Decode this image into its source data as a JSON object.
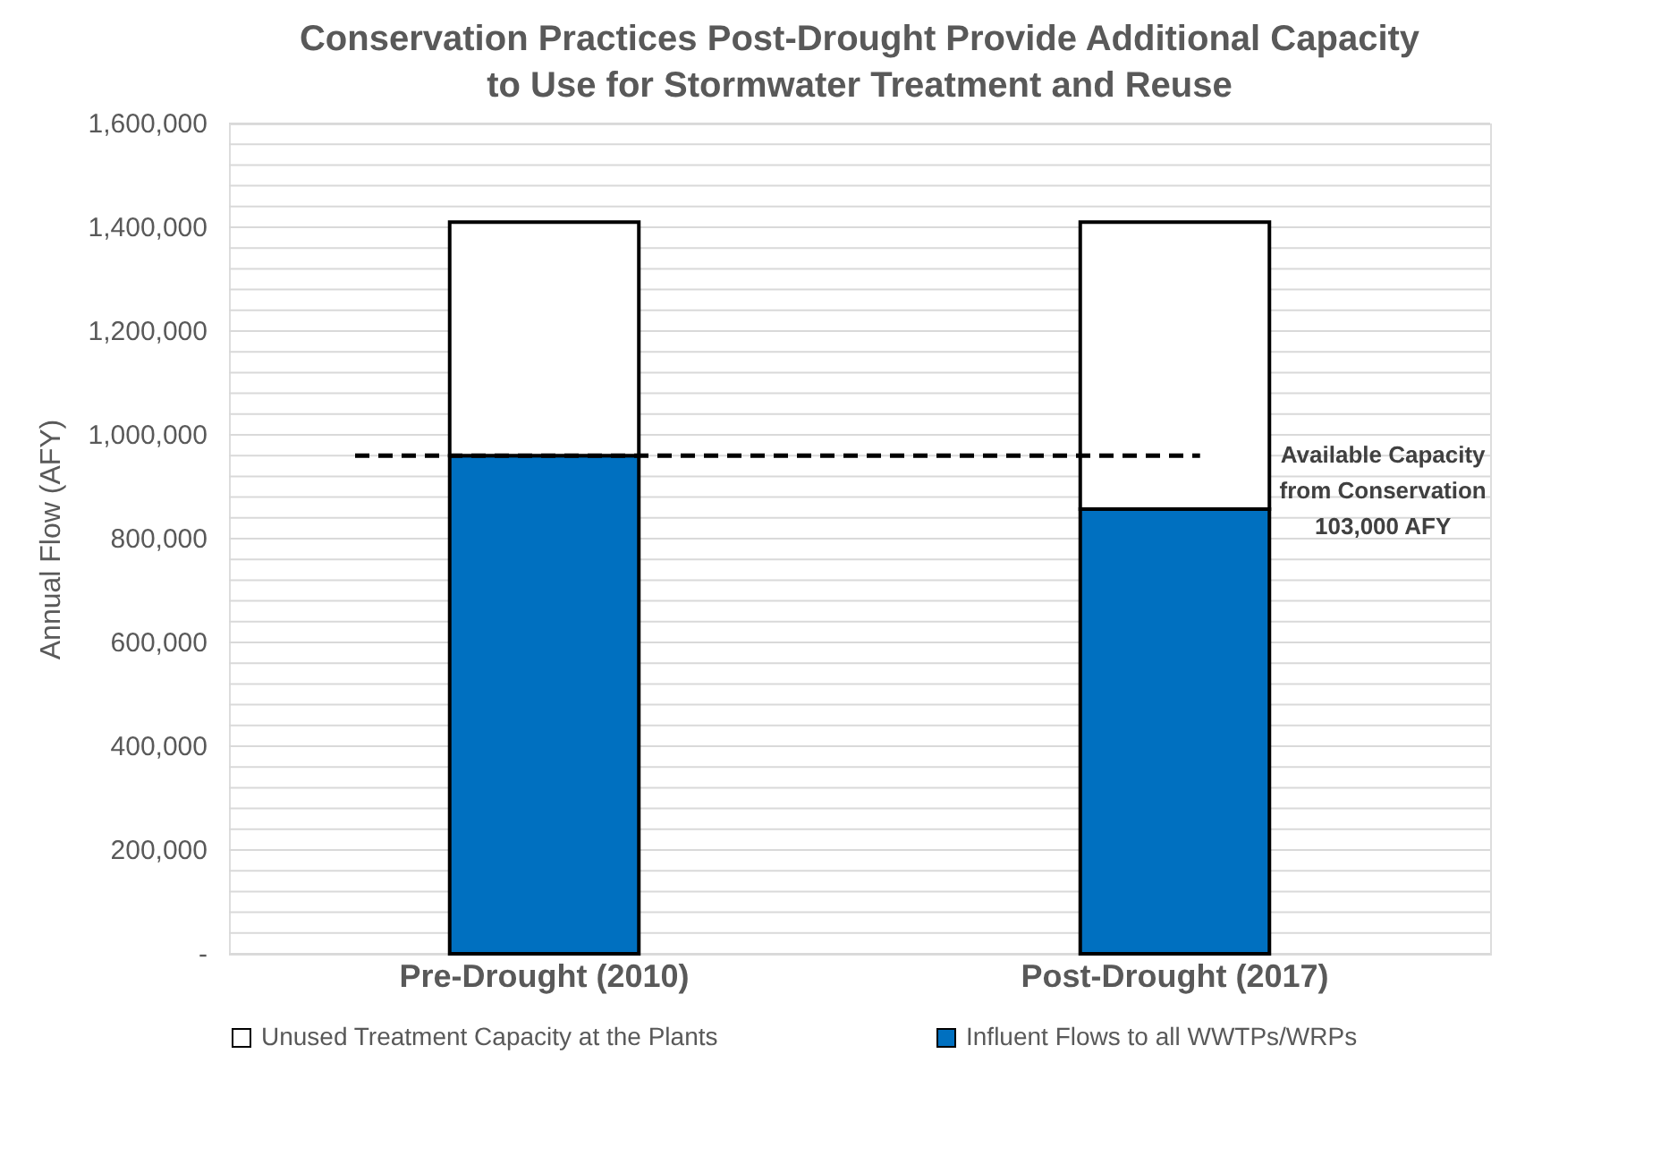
{
  "chart_data": {
    "type": "bar",
    "title": "Conservation Practices Post-Drought Provide Additional Capacity to Use for Stormwater Treatment and Reuse",
    "ylabel": "Annual Flow (AFY)",
    "categories": [
      "Pre-Drought (2010)",
      "Post-Drought (2017)"
    ],
    "stacked": true,
    "series": [
      {
        "name": "Influent Flows to all WWTPs/WRPs",
        "color": "#0070c0",
        "values": [
          960000,
          857000
        ]
      },
      {
        "name": "Unused Treatment Capacity at the Plants",
        "color": "#ffffff",
        "values": [
          450000,
          553000
        ]
      }
    ],
    "ylim": [
      0,
      1600000
    ],
    "yticks": [
      {
        "value": 0,
        "label": "-"
      },
      {
        "value": 40000,
        "label": null
      },
      {
        "value": 80000,
        "label": null
      },
      {
        "value": 120000,
        "label": null
      },
      {
        "value": 160000,
        "label": null
      },
      {
        "value": 200000,
        "label": "200,000"
      },
      {
        "value": 240000,
        "label": null
      },
      {
        "value": 280000,
        "label": null
      },
      {
        "value": 320000,
        "label": null
      },
      {
        "value": 360000,
        "label": null
      },
      {
        "value": 400000,
        "label": "400,000"
      },
      {
        "value": 440000,
        "label": null
      },
      {
        "value": 480000,
        "label": null
      },
      {
        "value": 520000,
        "label": null
      },
      {
        "value": 560000,
        "label": null
      },
      {
        "value": 600000,
        "label": "600,000"
      },
      {
        "value": 640000,
        "label": null
      },
      {
        "value": 680000,
        "label": null
      },
      {
        "value": 720000,
        "label": null
      },
      {
        "value": 760000,
        "label": null
      },
      {
        "value": 800000,
        "label": "800,000"
      },
      {
        "value": 840000,
        "label": null
      },
      {
        "value": 880000,
        "label": null
      },
      {
        "value": 920000,
        "label": null
      },
      {
        "value": 960000,
        "label": null
      },
      {
        "value": 1000000,
        "label": "1,000,000"
      },
      {
        "value": 1040000,
        "label": null
      },
      {
        "value": 1080000,
        "label": null
      },
      {
        "value": 1120000,
        "label": null
      },
      {
        "value": 1160000,
        "label": null
      },
      {
        "value": 1200000,
        "label": "1,200,000"
      },
      {
        "value": 1240000,
        "label": null
      },
      {
        "value": 1280000,
        "label": null
      },
      {
        "value": 1320000,
        "label": null
      },
      {
        "value": 1360000,
        "label": null
      },
      {
        "value": 1400000,
        "label": "1,400,000"
      },
      {
        "value": 1440000,
        "label": null
      },
      {
        "value": 1480000,
        "label": null
      },
      {
        "value": 1520000,
        "label": null
      },
      {
        "value": 1560000,
        "label": null
      },
      {
        "value": 1600000,
        "label": "1,600,000"
      }
    ],
    "grid": "y",
    "legend": "bottom",
    "ref_lines": [
      {
        "axis": "y",
        "value": 960000,
        "line_style": "dashed",
        "color": "#000000"
      }
    ],
    "annotations": [
      "Available Capacity from Conservation 103,000 AFY"
    ]
  }
}
